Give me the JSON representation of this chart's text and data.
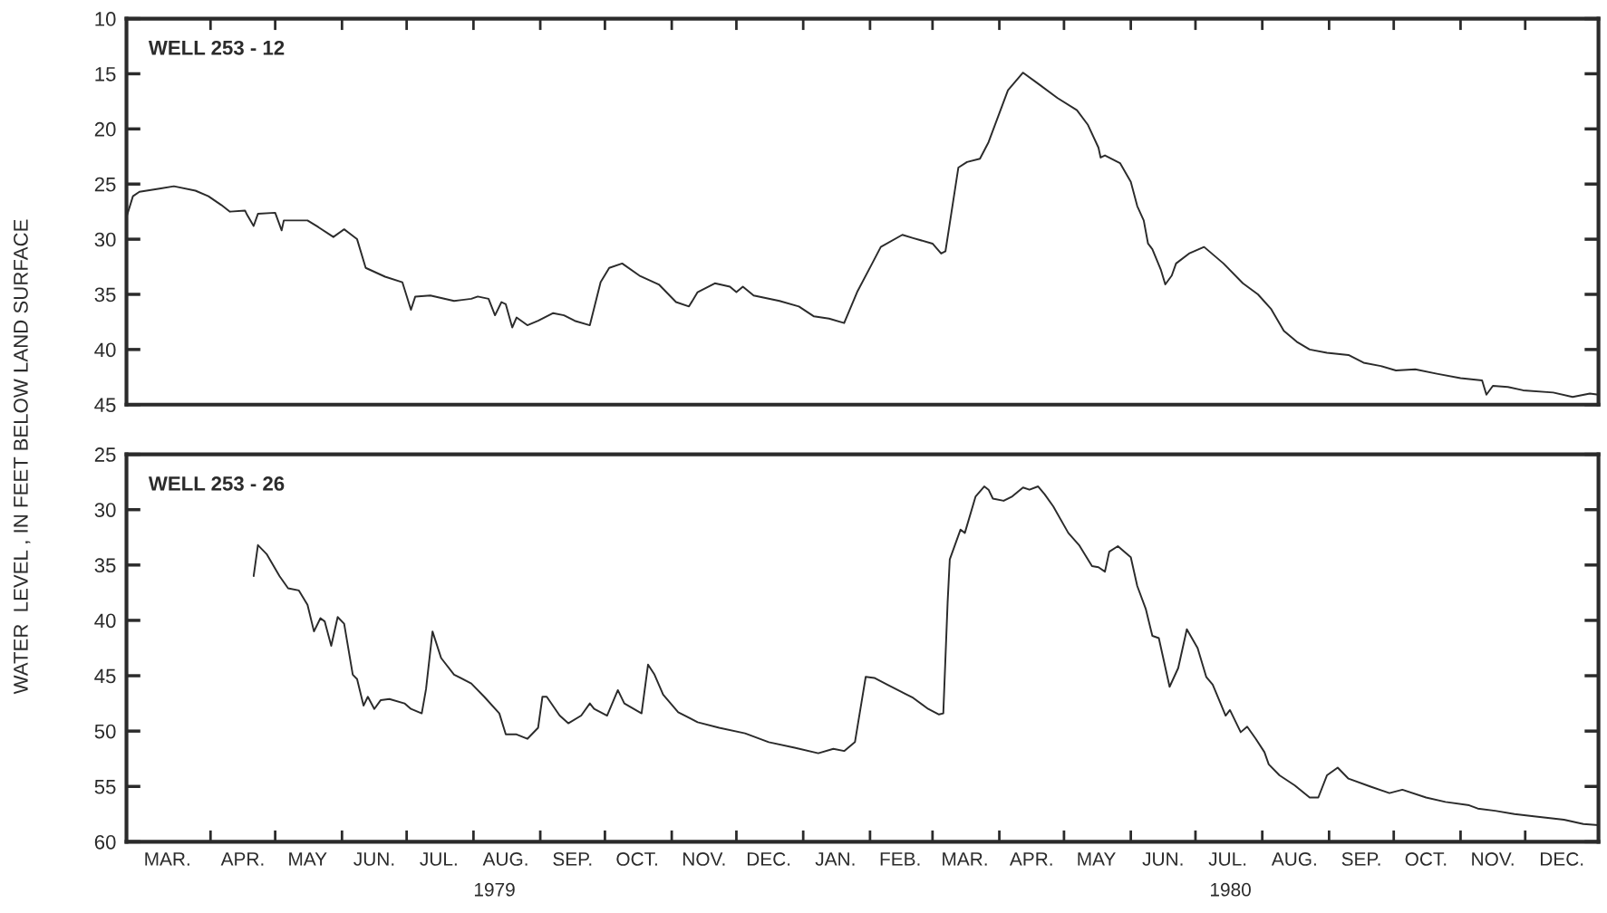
{
  "chart_data": [
    {
      "type": "line",
      "title": "WELL 253 - 12",
      "ylabel": "WATER  LEVEL , IN FEET BELOW LAND SURFACE",
      "tick_labels": "y",
      "xlim": [
        "1979-02-21",
        "1981-01-04"
      ],
      "ylim": [
        45,
        10
      ],
      "yticks": [
        10,
        15,
        20,
        25,
        30,
        35,
        40,
        45
      ],
      "xticks": [
        {
          "value": "1979-04-01",
          "label": null
        },
        {
          "value": "1979-05-01",
          "label": null
        },
        {
          "value": "1979-06-01",
          "label": null
        },
        {
          "value": "1979-07-01",
          "label": null
        },
        {
          "value": "1979-08-01",
          "label": null
        },
        {
          "value": "1979-09-01",
          "label": null
        },
        {
          "value": "1979-10-01",
          "label": null
        },
        {
          "value": "1979-11-01",
          "label": null
        },
        {
          "value": "1979-12-01",
          "label": null
        },
        {
          "value": "1980-01-01",
          "label": null
        },
        {
          "value": "1980-02-01",
          "label": null
        },
        {
          "value": "1980-03-01",
          "label": null
        },
        {
          "value": "1980-04-01",
          "label": null
        },
        {
          "value": "1980-05-01",
          "label": null
        },
        {
          "value": "1980-06-01",
          "label": null
        },
        {
          "value": "1980-07-01",
          "label": null
        },
        {
          "value": "1980-08-01",
          "label": null
        },
        {
          "value": "1980-09-01",
          "label": null
        },
        {
          "value": "1980-10-01",
          "label": null
        },
        {
          "value": "1980-11-01",
          "label": null
        },
        {
          "value": "1980-12-01",
          "label": null
        }
      ],
      "series": [
        {
          "color": "#2b2b2b",
          "x": [
            "1979-02-21",
            "1979-02-24",
            "1979-02-27",
            "1979-03-09",
            "1979-03-15",
            "1979-03-25",
            "1979-03-31",
            "1979-04-06",
            "1979-04-10",
            "1979-04-17",
            "1979-04-18",
            "1979-04-21",
            "1979-04-23",
            "1979-05-01",
            "1979-05-04",
            "1979-05-05",
            "1979-05-16",
            "1979-05-21",
            "1979-05-28",
            "1979-06-02",
            "1979-06-08",
            "1979-06-12",
            "1979-06-21",
            "1979-06-29",
            "1979-07-03",
            "1979-07-05",
            "1979-07-12",
            "1979-07-23",
            "1979-07-31",
            "1979-08-03",
            "1979-08-08",
            "1979-08-11",
            "1979-08-14",
            "1979-08-16",
            "1979-08-19",
            "1979-08-21",
            "1979-08-26",
            "1979-08-31",
            "1979-09-07",
            "1979-09-12",
            "1979-09-17",
            "1979-09-24",
            "1979-09-29",
            "1979-10-03",
            "1979-10-09",
            "1979-10-17",
            "1979-10-26",
            "1979-11-03",
            "1979-11-09",
            "1979-11-13",
            "1979-11-21",
            "1979-11-28",
            "1979-12-01",
            "1979-12-04",
            "1979-12-09",
            "1979-12-21",
            "1979-12-30",
            "1980-01-06",
            "1980-01-13",
            "1980-01-20",
            "1980-01-26",
            "1980-02-02",
            "1980-02-06",
            "1980-02-16",
            "1980-02-21",
            "1980-03-01",
            "1980-03-05",
            "1980-03-07",
            "1980-03-13",
            "1980-03-17",
            "1980-03-23",
            "1980-03-27",
            "1980-04-05",
            "1980-04-12",
            "1980-04-19",
            "1980-04-28",
            "1980-05-07",
            "1980-05-12",
            "1980-05-17",
            "1980-05-18",
            "1980-05-20",
            "1980-05-27",
            "1980-06-01",
            "1980-06-04",
            "1980-06-07",
            "1980-06-09",
            "1980-06-11",
            "1980-06-15",
            "1980-06-17",
            "1980-06-20",
            "1980-06-22",
            "1980-06-28",
            "1980-07-05",
            "1980-07-14",
            "1980-07-23",
            "1980-07-30",
            "1980-08-05",
            "1980-08-11",
            "1980-08-17",
            "1980-08-23",
            "1980-08-31",
            "1980-09-10",
            "1980-09-17",
            "1980-09-25",
            "1980-10-02",
            "1980-10-11",
            "1980-10-21",
            "1980-11-01",
            "1980-11-11",
            "1980-11-13",
            "1980-11-16",
            "1980-11-23",
            "1980-11-30",
            "1980-12-14",
            "1980-12-23",
            "1980-12-31",
            "1981-01-04"
          ],
          "values": [
            28.0,
            26.1,
            25.7,
            25.4,
            25.2,
            25.6,
            26.1,
            26.9,
            27.5,
            27.4,
            27.8,
            28.8,
            27.7,
            27.6,
            29.2,
            28.3,
            28.3,
            28.9,
            29.8,
            29.1,
            30.0,
            32.6,
            33.4,
            33.9,
            36.4,
            35.2,
            35.1,
            35.6,
            35.4,
            35.2,
            35.4,
            36.9,
            35.7,
            35.9,
            38.0,
            37.1,
            37.8,
            37.4,
            36.7,
            36.9,
            37.4,
            37.8,
            33.9,
            32.6,
            32.2,
            33.3,
            34.1,
            35.7,
            36.1,
            34.8,
            34.0,
            34.3,
            34.8,
            34.3,
            35.1,
            35.6,
            36.1,
            37.0,
            37.2,
            37.6,
            34.8,
            32.2,
            30.7,
            29.6,
            29.9,
            30.4,
            31.3,
            31.1,
            23.5,
            23.0,
            22.7,
            21.2,
            16.5,
            14.9,
            15.9,
            17.2,
            18.3,
            19.6,
            21.7,
            22.6,
            22.4,
            23.1,
            24.8,
            27.0,
            28.3,
            30.4,
            30.9,
            32.8,
            34.1,
            33.3,
            32.2,
            31.3,
            30.7,
            32.2,
            34.0,
            35.0,
            36.3,
            38.3,
            39.3,
            40.0,
            40.3,
            40.5,
            41.2,
            41.5,
            41.9,
            41.8,
            42.2,
            42.6,
            42.8,
            44.1,
            43.3,
            43.4,
            43.7,
            43.9,
            44.3,
            44.0,
            44.1
          ]
        }
      ]
    },
    {
      "type": "line",
      "title": "WELL 253 - 26",
      "xlim": [
        "1979-02-21",
        "1981-01-04"
      ],
      "ylim": [
        60,
        25
      ],
      "yticks": [
        25,
        30,
        35,
        40,
        45,
        50,
        55,
        60
      ],
      "xticks": [
        {
          "value": "1979-03-12",
          "label": "MAR."
        },
        {
          "value": "1979-04-01",
          "label": null
        },
        {
          "value": "1979-04-16",
          "label": "APR."
        },
        {
          "value": "1979-05-01",
          "label": null
        },
        {
          "value": "1979-05-16",
          "label": "MAY"
        },
        {
          "value": "1979-06-01",
          "label": null
        },
        {
          "value": "1979-06-16",
          "label": "JUN."
        },
        {
          "value": "1979-07-01",
          "label": null
        },
        {
          "value": "1979-07-16",
          "label": "JUL."
        },
        {
          "value": "1979-08-01",
          "label": null
        },
        {
          "value": "1979-08-16",
          "label": "AUG."
        },
        {
          "value": "1979-09-01",
          "label": null
        },
        {
          "value": "1979-09-16",
          "label": "SEP."
        },
        {
          "value": "1979-10-01",
          "label": null
        },
        {
          "value": "1979-10-16",
          "label": "OCT."
        },
        {
          "value": "1979-11-01",
          "label": null
        },
        {
          "value": "1979-11-16",
          "label": "NOV."
        },
        {
          "value": "1979-12-01",
          "label": null
        },
        {
          "value": "1979-12-16",
          "label": "DEC."
        },
        {
          "value": "1980-01-01",
          "label": null
        },
        {
          "value": "1980-01-16",
          "label": "JAN."
        },
        {
          "value": "1980-02-01",
          "label": null
        },
        {
          "value": "1980-02-15",
          "label": "FEB."
        },
        {
          "value": "1980-03-01",
          "label": null
        },
        {
          "value": "1980-03-16",
          "label": "MAR."
        },
        {
          "value": "1980-04-01",
          "label": null
        },
        {
          "value": "1980-04-16",
          "label": "APR."
        },
        {
          "value": "1980-05-01",
          "label": null
        },
        {
          "value": "1980-05-16",
          "label": "MAY"
        },
        {
          "value": "1980-06-01",
          "label": null
        },
        {
          "value": "1980-06-16",
          "label": "JUN."
        },
        {
          "value": "1980-07-01",
          "label": null
        },
        {
          "value": "1980-07-16",
          "label": "JUL."
        },
        {
          "value": "1980-08-01",
          "label": null
        },
        {
          "value": "1980-08-16",
          "label": "AUG."
        },
        {
          "value": "1980-09-01",
          "label": null
        },
        {
          "value": "1980-09-16",
          "label": "SEP."
        },
        {
          "value": "1980-10-01",
          "label": null
        },
        {
          "value": "1980-10-16",
          "label": "OCT."
        },
        {
          "value": "1980-11-01",
          "label": null
        },
        {
          "value": "1980-11-16",
          "label": "NOV."
        },
        {
          "value": "1980-12-01",
          "label": null
        },
        {
          "value": "1980-12-18",
          "label": "DEC."
        }
      ],
      "annotations": [
        "1979",
        "1980"
      ],
      "series": [
        {
          "color": "#2b2b2b",
          "x": [
            "1979-04-21",
            "1979-04-23",
            "1979-04-27",
            "1979-05-03",
            "1979-05-07",
            "1979-05-12",
            "1979-05-16",
            "1979-05-19",
            "1979-05-22",
            "1979-05-24",
            "1979-05-27",
            "1979-05-30",
            "1979-06-02",
            "1979-06-06",
            "1979-06-08",
            "1979-06-11",
            "1979-06-13",
            "1979-06-16",
            "1979-06-19",
            "1979-06-23",
            "1979-06-30",
            "1979-07-03",
            "1979-07-08",
            "1979-07-10",
            "1979-07-13",
            "1979-07-17",
            "1979-07-23",
            "1979-07-31",
            "1979-08-06",
            "1979-08-13",
            "1979-08-16",
            "1979-08-21",
            "1979-08-26",
            "1979-08-31",
            "1979-09-02",
            "1979-09-04",
            "1979-09-10",
            "1979-09-14",
            "1979-09-20",
            "1979-09-24",
            "1979-09-26",
            "1979-10-02",
            "1979-10-07",
            "1979-10-10",
            "1979-10-18",
            "1979-10-21",
            "1979-10-24",
            "1979-10-28",
            "1979-11-04",
            "1979-11-13",
            "1979-11-23",
            "1979-12-05",
            "1979-12-16",
            "1979-12-28",
            "1980-01-08",
            "1980-01-15",
            "1980-01-20",
            "1980-01-25",
            "1980-01-30",
            "1980-02-03",
            "1980-02-09",
            "1980-02-17",
            "1980-02-21",
            "1980-02-28",
            "1980-03-04",
            "1980-03-06",
            "1980-03-08",
            "1980-03-09",
            "1980-03-14",
            "1980-03-16",
            "1980-03-21",
            "1980-03-25",
            "1980-03-27",
            "1980-03-29",
            "1980-04-03",
            "1980-04-07",
            "1980-04-12",
            "1980-04-15",
            "1980-04-19",
            "1980-04-22",
            "1980-04-26",
            "1980-05-03",
            "1980-05-08",
            "1980-05-14",
            "1980-05-17",
            "1980-05-20",
            "1980-05-22",
            "1980-05-26",
            "1980-06-01",
            "1980-06-04",
            "1980-06-08",
            "1980-06-11",
            "1980-06-14",
            "1980-06-19",
            "1980-06-23",
            "1980-06-27",
            "1980-07-02",
            "1980-07-06",
            "1980-07-09",
            "1980-07-15",
            "1980-07-17",
            "1980-07-22",
            "1980-07-25",
            "1980-07-29",
            "1980-08-02",
            "1980-08-04",
            "1980-08-09",
            "1980-08-16",
            "1980-08-23",
            "1980-08-27",
            "1980-08-31",
            "1980-09-05",
            "1980-09-10",
            "1980-09-20",
            "1980-09-29",
            "1980-10-05",
            "1980-10-16",
            "1980-10-25",
            "1980-11-05",
            "1980-11-09",
            "1980-11-17",
            "1980-11-26",
            "1980-12-05",
            "1980-12-19",
            "1980-12-28",
            "1981-01-04"
          ],
          "values": [
            36.0,
            33.2,
            34.0,
            36.0,
            37.1,
            37.3,
            38.6,
            41.0,
            39.8,
            40.1,
            42.3,
            39.7,
            40.3,
            44.9,
            45.3,
            47.7,
            46.9,
            48.0,
            47.2,
            47.1,
            47.5,
            48.0,
            48.4,
            46.2,
            41.0,
            43.4,
            44.9,
            45.7,
            46.9,
            48.4,
            50.3,
            50.3,
            50.7,
            49.7,
            46.9,
            46.9,
            48.6,
            49.3,
            48.6,
            47.5,
            48.0,
            48.6,
            46.3,
            47.5,
            48.4,
            44.0,
            44.9,
            46.7,
            48.3,
            49.2,
            49.7,
            50.2,
            51.0,
            51.5,
            52.0,
            51.6,
            51.8,
            51.0,
            45.1,
            45.2,
            45.8,
            46.6,
            47.0,
            48.0,
            48.5,
            48.4,
            38.4,
            34.5,
            31.8,
            32.1,
            28.8,
            27.9,
            28.2,
            29.0,
            29.2,
            28.8,
            28.0,
            28.2,
            27.9,
            28.6,
            29.7,
            32.1,
            33.2,
            35.1,
            35.2,
            35.6,
            33.8,
            33.3,
            34.3,
            36.9,
            39.0,
            41.4,
            41.6,
            46.0,
            44.3,
            40.8,
            42.5,
            45.1,
            45.8,
            48.6,
            48.1,
            50.1,
            49.6,
            50.7,
            51.9,
            53.0,
            54.0,
            54.9,
            56.0,
            56.0,
            54.0,
            53.3,
            54.3,
            55.0,
            55.6,
            55.3,
            56.0,
            56.4,
            56.7,
            57.0,
            57.2,
            57.5,
            57.7,
            58.0,
            58.4,
            58.5
          ]
        }
      ]
    }
  ]
}
